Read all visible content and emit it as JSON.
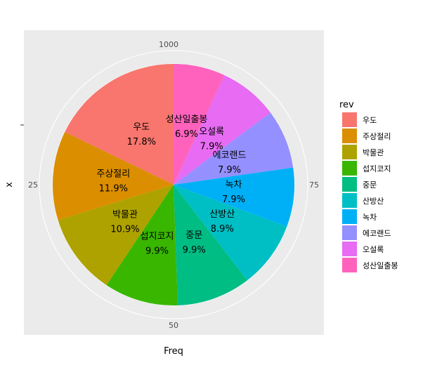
{
  "chart_data": {
    "type": "pie",
    "legend_title": "rev",
    "legend_position": "right",
    "xlabel": "Freq",
    "ylabel": "x",
    "theta_ticks": [
      "0",
      "25",
      "50",
      "75",
      "100"
    ],
    "slices": [
      {
        "name": "우도",
        "label": "우도",
        "pct_label": "17.8%",
        "value": 17.8,
        "color": "#F8766D"
      },
      {
        "name": "주상절리",
        "label": "주상절리",
        "pct_label": "11.9%",
        "value": 11.9,
        "color": "#DB8E00"
      },
      {
        "name": "박물관",
        "label": "박물관",
        "pct_label": "10.9%",
        "value": 10.9,
        "color": "#AEA200"
      },
      {
        "name": "섭지코지",
        "label": "섭지코지",
        "pct_label": "9.9%",
        "value": 9.9,
        "color": "#39B600"
      },
      {
        "name": "중문",
        "label": "중문",
        "pct_label": "9.9%",
        "value": 9.9,
        "color": "#00BD84"
      },
      {
        "name": "산방산",
        "label": "산방산",
        "pct_label": "8.9%",
        "value": 8.9,
        "color": "#00BFC4"
      },
      {
        "name": "녹차",
        "label": "녹차",
        "pct_label": "7.9%",
        "value": 7.9,
        "color": "#00B0F6"
      },
      {
        "name": "에코랜드",
        "label": "에코랜드",
        "pct_label": "7.9%",
        "value": 7.9,
        "color": "#9590FF"
      },
      {
        "name": "오설록",
        "label": "오설록",
        "pct_label": "7.9%",
        "value": 7.9,
        "color": "#E76BF3"
      },
      {
        "name": "성산일출봉",
        "label": "성산일출봉",
        "pct_label": "6.9%",
        "value": 6.9,
        "color": "#FF62BC"
      }
    ]
  }
}
